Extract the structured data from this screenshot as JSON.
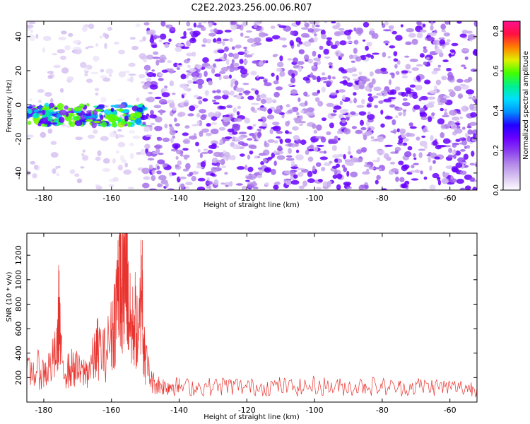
{
  "figure_title": "C2E2.2023.256.00.06.R07",
  "colors": {
    "snr_line": "#e8332e",
    "axis": "#000000",
    "colormap": [
      "#ffffff",
      "#d8c4f2",
      "#b48ae8",
      "#8a3ef0",
      "#6a00ff",
      "#2200ff",
      "#0090ff",
      "#00e0ff",
      "#00f090",
      "#40ff00",
      "#e0f000",
      "#ff8000",
      "#ff1040",
      "#ff1090"
    ]
  },
  "chart_data": [
    {
      "type": "heatmap",
      "title": "",
      "xlabel": "Height of straight line (km)",
      "ylabel": "Frequency (Hz)",
      "xlim": [
        -185,
        -52
      ],
      "ylim": [
        -50,
        49
      ],
      "x_ticks": [
        -180,
        -160,
        -140,
        -120,
        -100,
        -80,
        -60
      ],
      "y_ticks": [
        -40,
        -20,
        0,
        20,
        40
      ],
      "colorbar": {
        "label": "Normalized spectral amplitude",
        "range": [
          0.0,
          0.85
        ],
        "ticks": [
          "0.0",
          "0.2",
          "0.4",
          "0.6",
          "0.8"
        ]
      },
      "regions": [
        {
          "name": "sparse low-amplitude background",
          "x_range": [
            -185,
            -150
          ],
          "freq_range": [
            -50,
            49
          ],
          "amplitude": 0.05
        },
        {
          "name": "narrow signal band",
          "x_range": [
            -185,
            -150
          ],
          "freq_range": [
            -12,
            0
          ],
          "amplitude": 0.4,
          "peak": {
            "x": -160,
            "freq": -7,
            "amplitude": 0.6
          }
        },
        {
          "name": "dense noise field",
          "x_range": [
            -150,
            -52
          ],
          "freq_range": [
            -50,
            49
          ],
          "amplitude": 0.12
        }
      ]
    },
    {
      "type": "line",
      "title": "",
      "xlabel": "Height of straight line (km)",
      "ylabel": "SNR (10 * v/v)",
      "xlim": [
        -185,
        -52
      ],
      "ylim": [
        0,
        1380
      ],
      "x_ticks": [
        -180,
        -160,
        -140,
        -120,
        -100,
        -80,
        -60
      ],
      "y_ticks": [
        200,
        400,
        600,
        800,
        1000,
        1200
      ],
      "series": [
        {
          "name": "SNR",
          "x": [
            -185,
            -182,
            -180,
            -178,
            -176,
            -175.5,
            -175,
            -173,
            -171,
            -169,
            -167,
            -165,
            -164,
            -162,
            -160,
            -159,
            -158,
            -157.5,
            -157,
            -156,
            -155.5,
            -155,
            -154,
            -153,
            -152,
            -151,
            -150.5,
            -150,
            -148,
            -146,
            -144,
            -142,
            -140,
            -135,
            -130,
            -125,
            -120,
            -115,
            -110,
            -105,
            -100,
            -95,
            -90,
            -85,
            -80,
            -75,
            -70,
            -65,
            -60,
            -55,
            -52
          ],
          "y": [
            250,
            300,
            260,
            330,
            450,
            880,
            400,
            280,
            320,
            250,
            290,
            400,
            500,
            430,
            600,
            780,
            1050,
            1380,
            900,
            1150,
            1280,
            820,
            650,
            760,
            500,
            1200,
            520,
            380,
            180,
            160,
            140,
            150,
            140,
            135,
            140,
            150,
            135,
            140,
            145,
            130,
            150,
            140,
            135,
            150,
            140,
            130,
            145,
            140,
            135,
            130,
            120
          ]
        }
      ]
    }
  ]
}
